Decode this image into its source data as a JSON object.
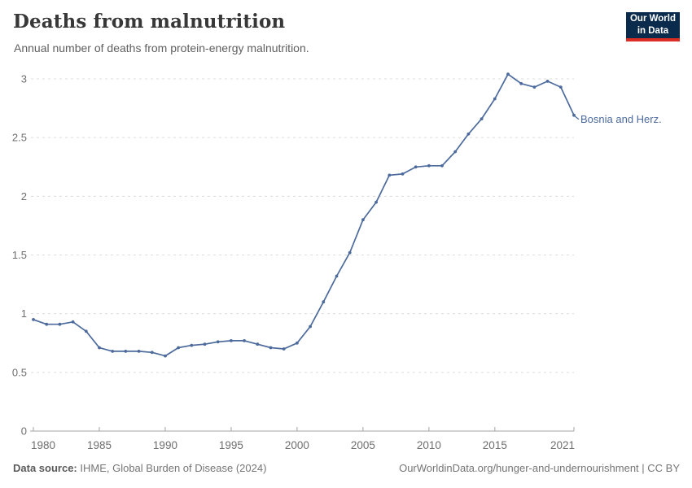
{
  "header": {
    "title": "Deaths from malnutrition",
    "subtitle": "Annual number of deaths from protein-energy malnutrition.",
    "logo": {
      "line1": "Our World",
      "line2": "in Data"
    }
  },
  "footer": {
    "source_label": "Data source:",
    "source_text": " IHME, Global Burden of Disease (2024)",
    "right_text": "OurWorldinData.org/hunger-and-undernourishment | CC BY"
  },
  "colors": {
    "line": "#4c6a9c",
    "logo_navy": "#0b2b4d",
    "logo_red": "#dc2d25"
  },
  "chart_data": {
    "type": "line",
    "title": "Deaths from malnutrition",
    "subtitle": "Annual number of deaths from protein-energy malnutrition.",
    "xlabel": "",
    "ylabel": "",
    "xlim": [
      1980,
      2021
    ],
    "ylim": [
      0,
      3
    ],
    "x_ticks": [
      1980,
      1985,
      1990,
      1995,
      2000,
      2005,
      2010,
      2015,
      2021
    ],
    "y_ticks": [
      0,
      0.5,
      1,
      1.5,
      2,
      2.5,
      3
    ],
    "grid": "horizontal-dashed",
    "legend_position": "end-of-line-label",
    "series": [
      {
        "name": "Bosnia and Herz.",
        "color": "#4c6a9c",
        "x": [
          1980,
          1981,
          1982,
          1983,
          1984,
          1985,
          1986,
          1987,
          1988,
          1989,
          1990,
          1991,
          1992,
          1993,
          1994,
          1995,
          1996,
          1997,
          1998,
          1999,
          2000,
          2001,
          2002,
          2003,
          2004,
          2005,
          2006,
          2007,
          2008,
          2009,
          2010,
          2011,
          2012,
          2013,
          2014,
          2015,
          2016,
          2017,
          2018,
          2019,
          2020,
          2021
        ],
        "values": [
          0.95,
          0.91,
          0.91,
          0.93,
          0.85,
          0.71,
          0.68,
          0.68,
          0.68,
          0.67,
          0.64,
          0.71,
          0.73,
          0.74,
          0.76,
          0.77,
          0.77,
          0.74,
          0.71,
          0.7,
          0.75,
          0.89,
          1.1,
          1.32,
          1.52,
          1.8,
          1.95,
          2.18,
          2.19,
          2.25,
          2.26,
          2.26,
          2.38,
          2.53,
          2.66,
          2.83,
          3.04,
          2.96,
          2.93,
          2.98,
          2.93,
          2.69
        ]
      }
    ]
  }
}
